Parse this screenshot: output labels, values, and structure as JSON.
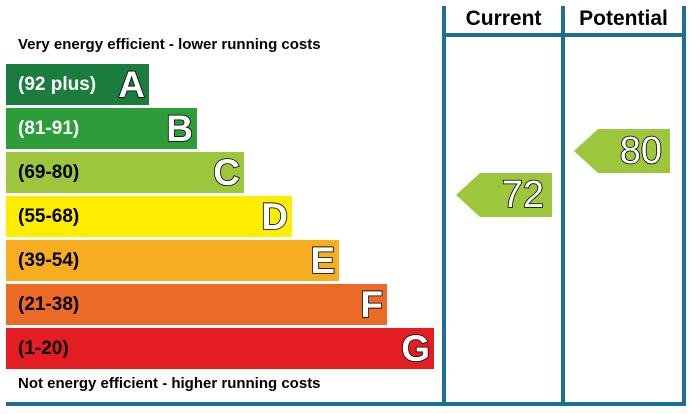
{
  "chart_data": {
    "type": "bar",
    "title": "",
    "top_caption": "Very energy efficient - lower running costs",
    "bottom_caption": "Not energy efficient - higher running costs",
    "columns": [
      "Current",
      "Potential"
    ],
    "bands": [
      {
        "letter": "A",
        "range": "(92 plus)",
        "min": 92,
        "max": 100,
        "color": "#1a7d3d"
      },
      {
        "letter": "B",
        "range": "(81-91)",
        "min": 81,
        "max": 91,
        "color": "#2d9d3a"
      },
      {
        "letter": "C",
        "range": "(69-80)",
        "min": 69,
        "max": 80,
        "color": "#9cc63c"
      },
      {
        "letter": "D",
        "range": "(55-68)",
        "min": 55,
        "max": 68,
        "color": "#ffed00"
      },
      {
        "letter": "E",
        "range": "(39-54)",
        "min": 39,
        "max": 54,
        "color": "#f6ad1f"
      },
      {
        "letter": "F",
        "range": "(21-38)",
        "min": 21,
        "max": 38,
        "color": "#ec6a25"
      },
      {
        "letter": "G",
        "range": "(1-20)",
        "min": 1,
        "max": 20,
        "color": "#e31d22"
      }
    ],
    "ratings": {
      "current": {
        "value": 72,
        "band": "C",
        "color": "#9cc63c"
      },
      "potential": {
        "value": 80,
        "band": "C",
        "color": "#9cc63c"
      }
    }
  }
}
